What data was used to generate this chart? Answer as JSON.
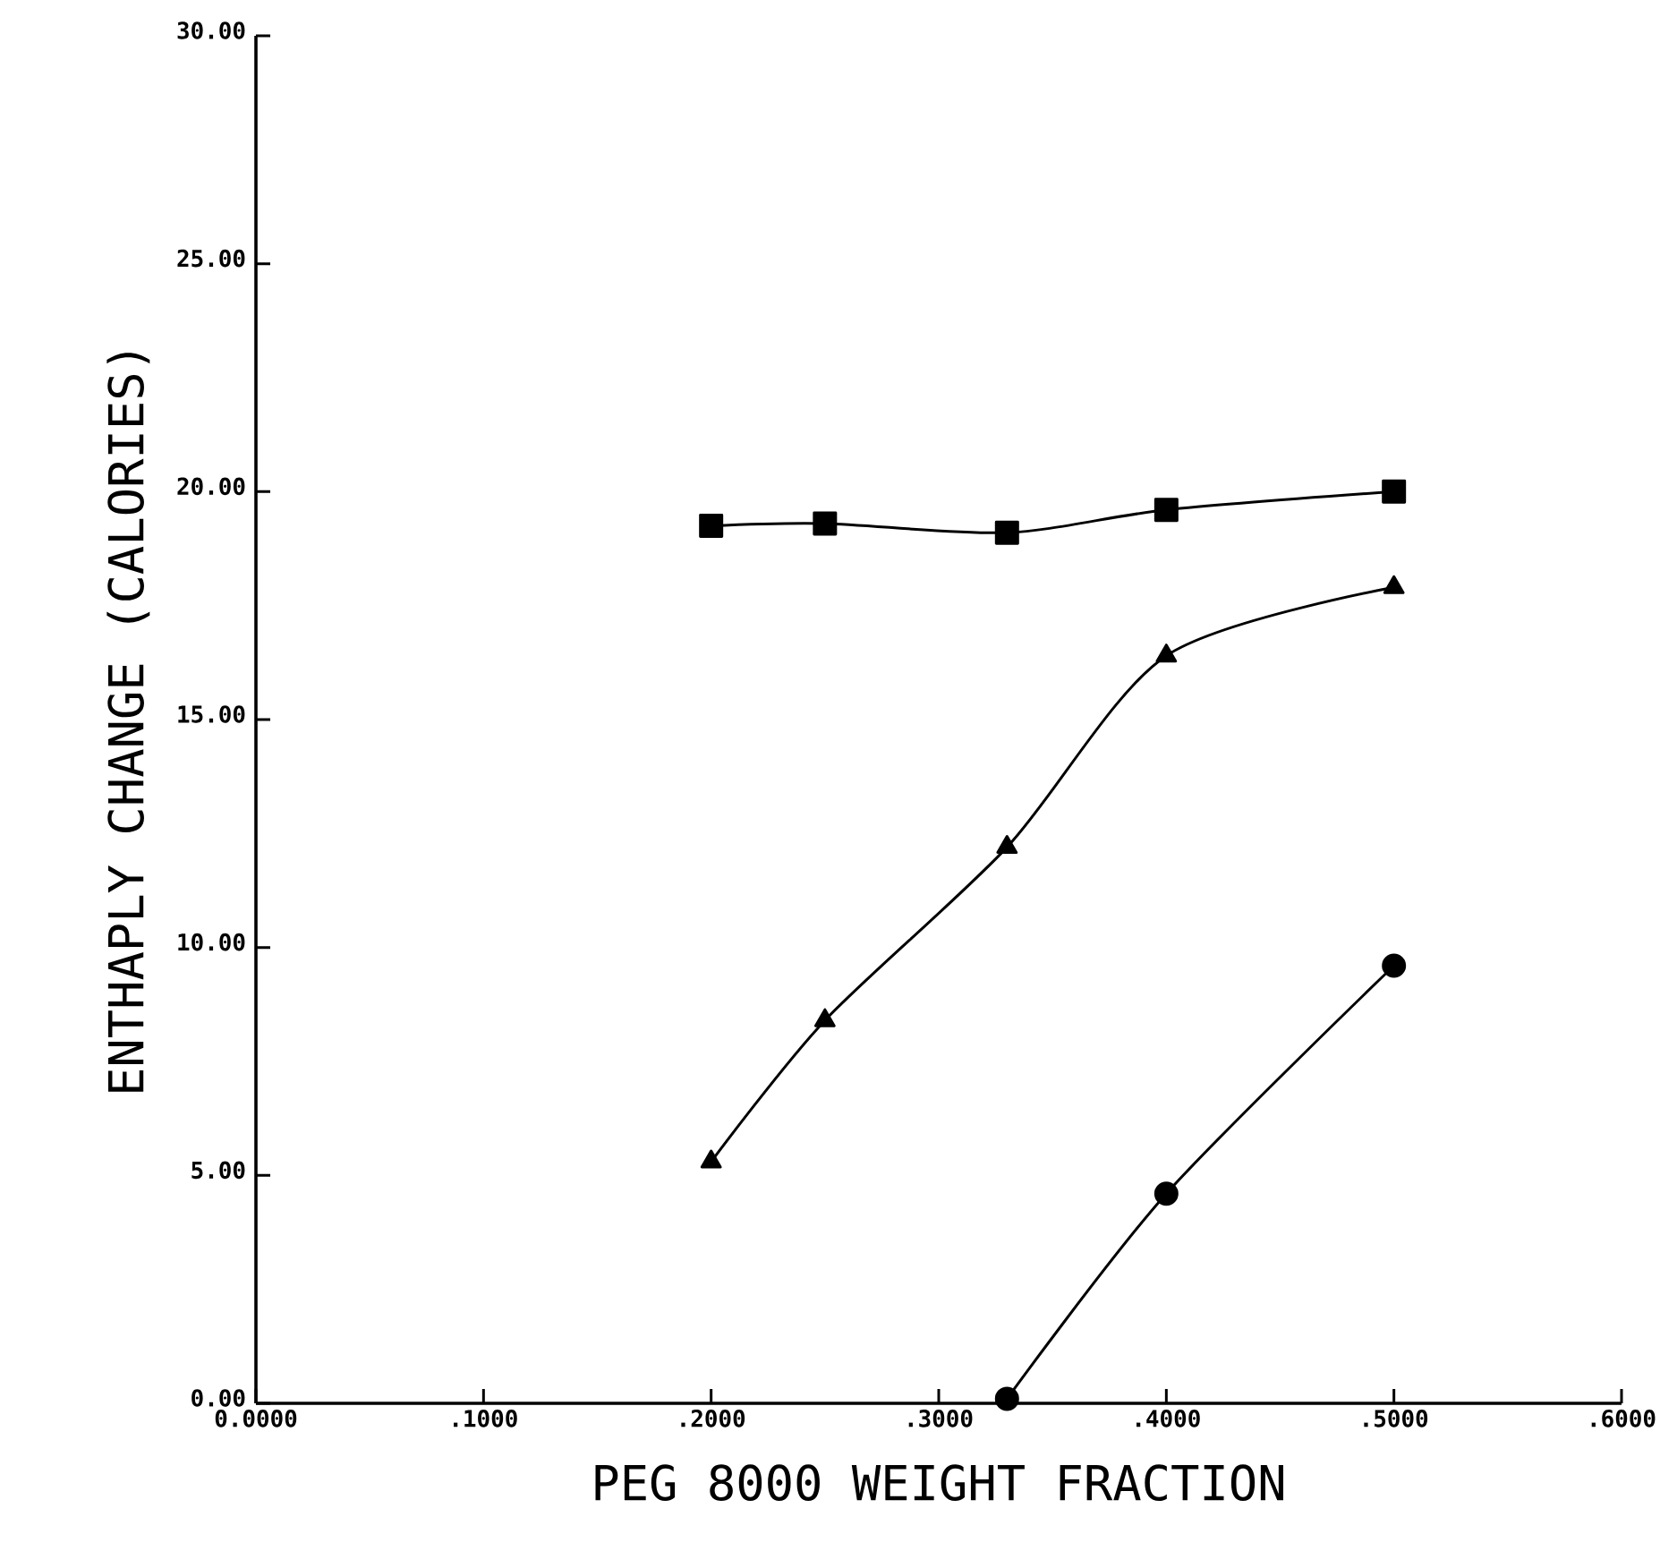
{
  "chart_data": {
    "type": "line",
    "xlabel": "PEG 8000 WEIGHT FRACTION",
    "ylabel": "ENTHAPLY CHANGE (CALORIES)",
    "series": [
      {
        "color": "#000000",
        "marker": "square",
        "x": [
          0.2,
          0.25,
          0.33,
          0.4,
          0.5
        ],
        "values": [
          19.25,
          19.3,
          19.1,
          19.6,
          20.0
        ]
      },
      {
        "color": "#000000",
        "marker": "triangle",
        "x": [
          0.2,
          0.25,
          0.33,
          0.4,
          0.5
        ],
        "values": [
          5.3,
          8.4,
          12.2,
          16.4,
          17.9
        ]
      },
      {
        "color": "#000000",
        "marker": "circle",
        "x": [
          0.33,
          0.4,
          0.5
        ],
        "values": [
          0.1,
          4.6,
          9.6
        ]
      }
    ],
    "xlim": [
      0,
      0.6
    ],
    "ylim": [
      0,
      30
    ],
    "xticks": [
      {
        "value": 0,
        "label": "0.0000"
      },
      {
        "value": 0.1,
        "label": ".1000"
      },
      {
        "value": 0.2,
        "label": ".2000"
      },
      {
        "value": 0.3,
        "label": ".3000"
      },
      {
        "value": 0.4,
        "label": ".4000"
      },
      {
        "value": 0.5,
        "label": ".5000"
      },
      {
        "value": 0.6,
        "label": ".6000"
      }
    ],
    "yticks": [
      {
        "value": 0,
        "label": "0.00"
      },
      {
        "value": 5,
        "label": "5.00"
      },
      {
        "value": 10,
        "label": "10.00"
      },
      {
        "value": 15,
        "label": "15.00"
      },
      {
        "value": 20,
        "label": "20.00"
      },
      {
        "value": 25,
        "label": "25.00"
      },
      {
        "value": 30,
        "label": "30.00"
      }
    ],
    "grid": false,
    "line_style": "solid"
  }
}
